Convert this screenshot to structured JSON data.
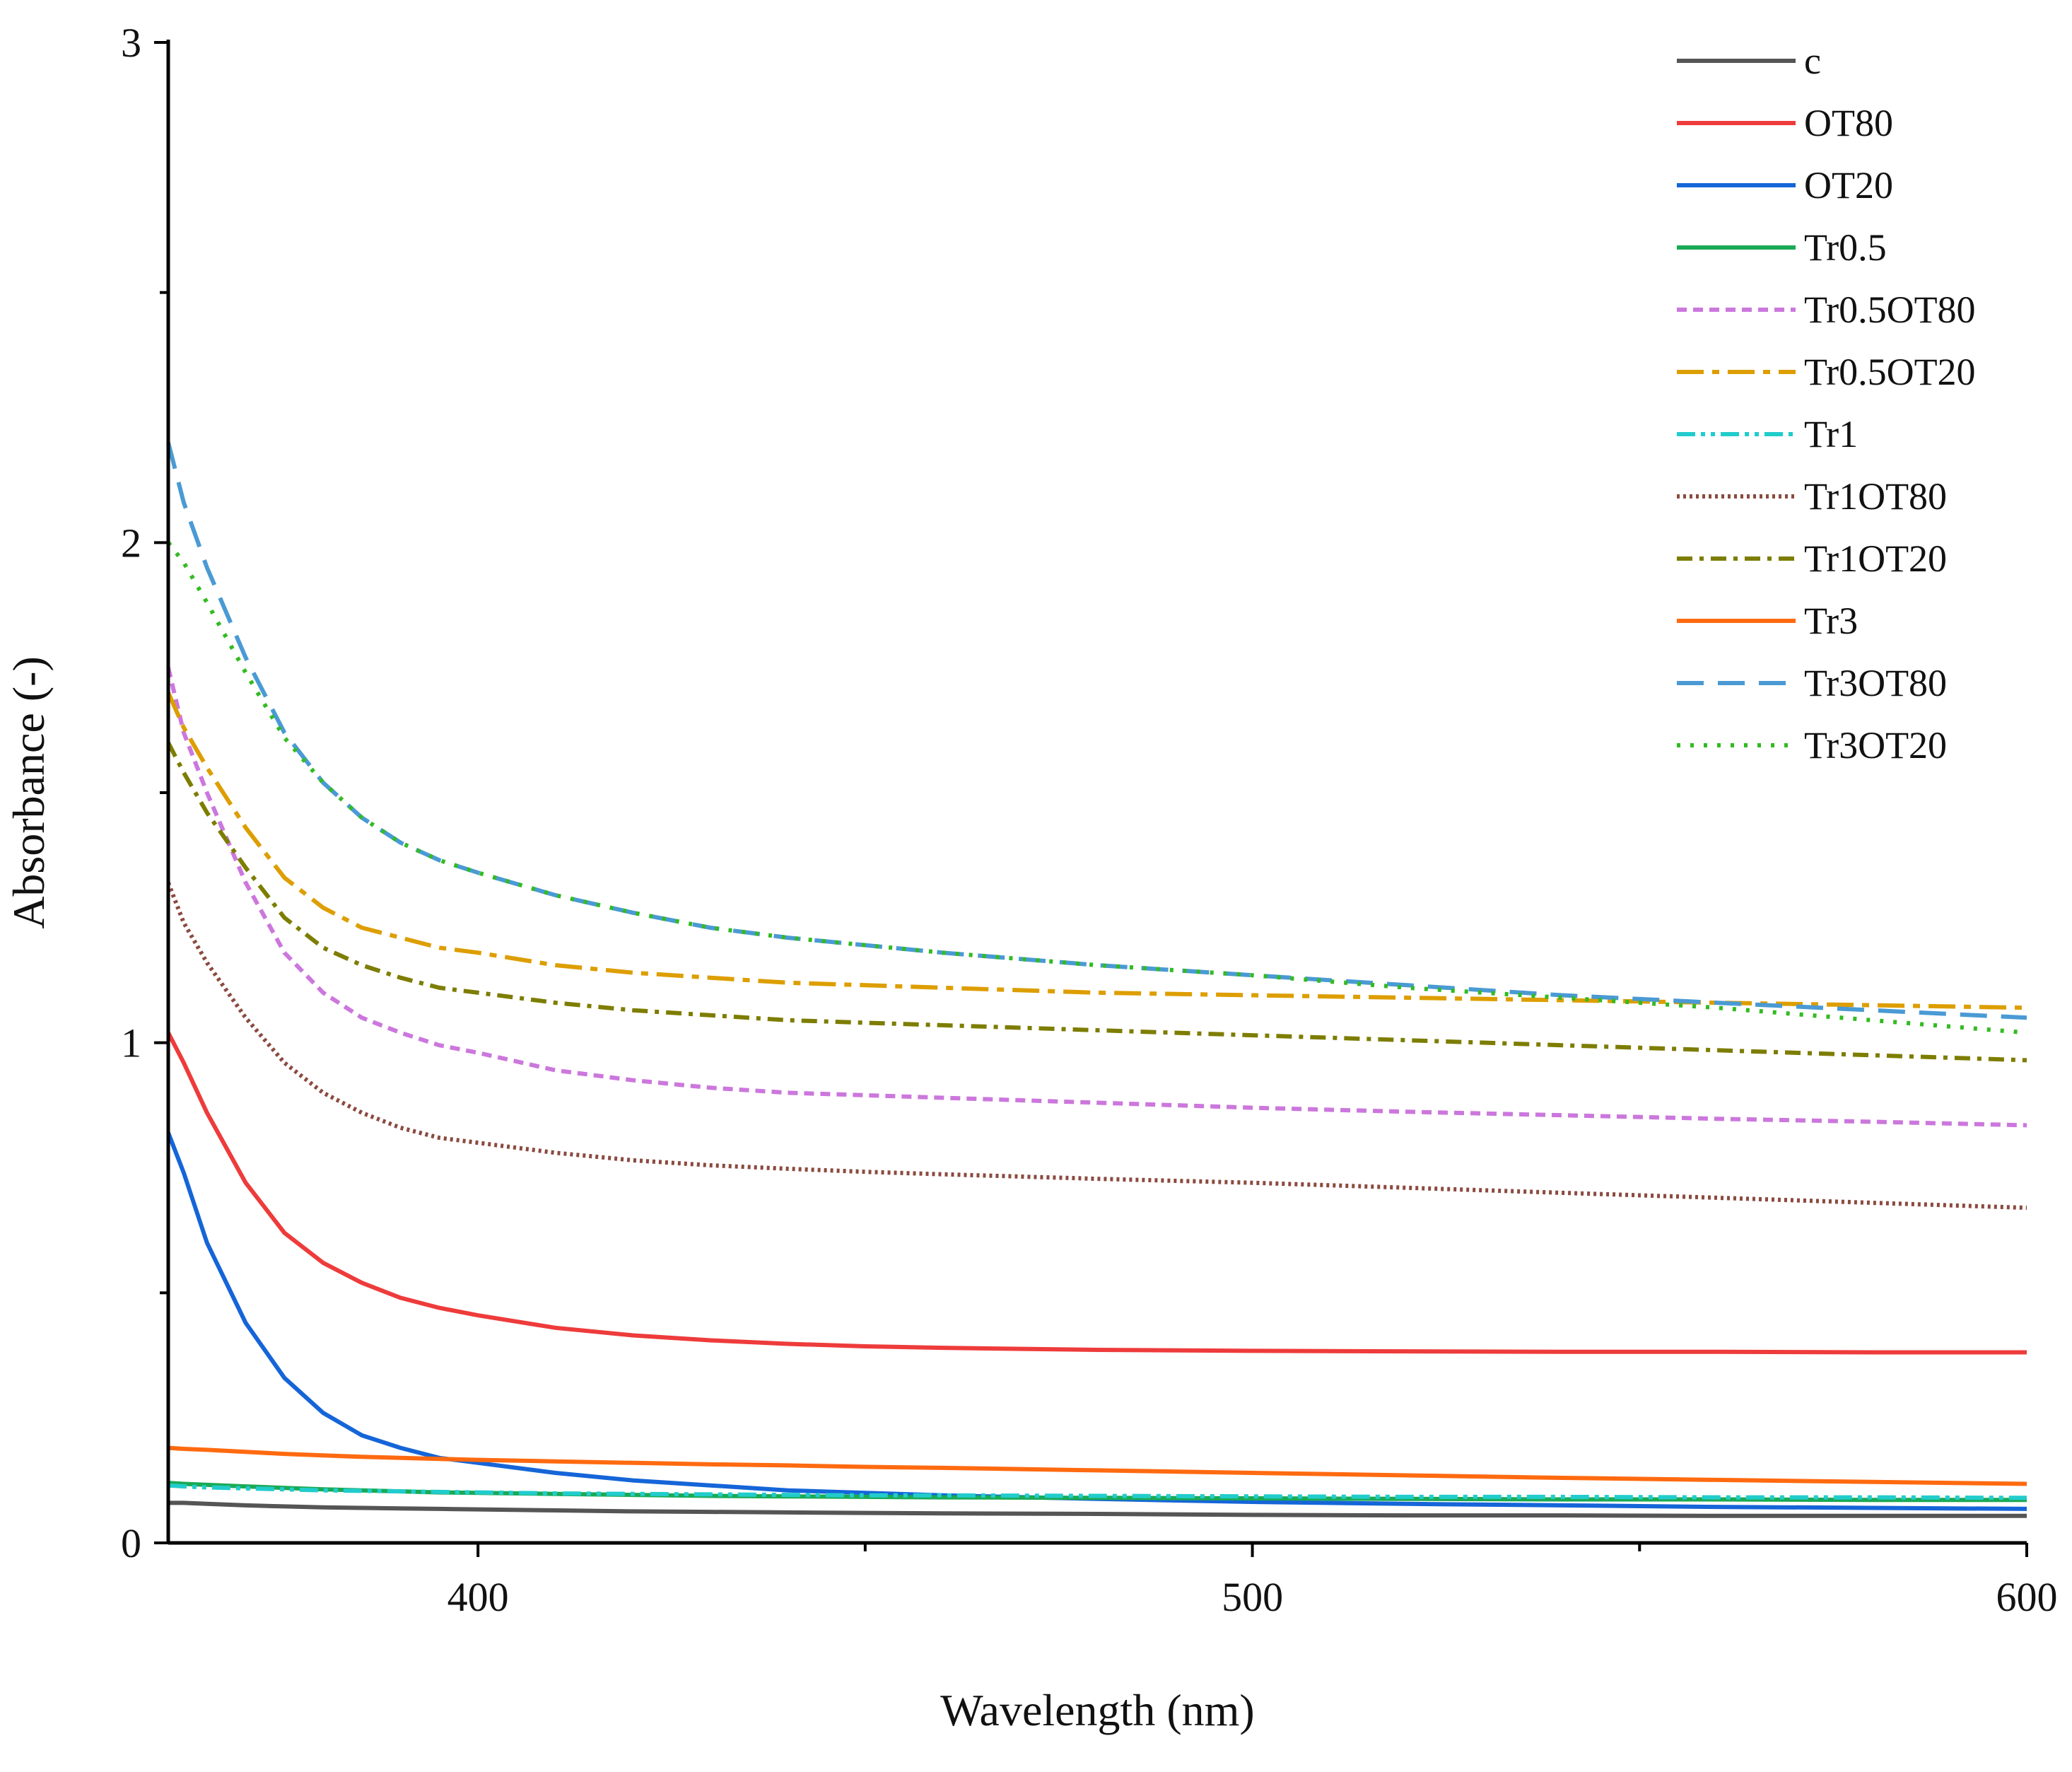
{
  "chart_data": {
    "type": "line",
    "title": "",
    "xlabel": "Wavelength (nm)",
    "ylabel": "Absorbance (-)",
    "xlim": [
      360,
      600
    ],
    "ylim": [
      0,
      3
    ],
    "x_ticks": [
      400,
      500,
      600
    ],
    "x_tick_labels": [
      "400",
      "500",
      "600"
    ],
    "x_minor_ticks": [
      450,
      550
    ],
    "y_ticks": [
      0,
      1,
      2,
      3
    ],
    "y_tick_labels": [
      "0",
      "1",
      "2",
      "3"
    ],
    "y_minor_ticks": [
      0.5,
      1.5,
      2.5
    ],
    "grid": false,
    "legend_position": "top-right",
    "x": [
      360,
      362,
      365,
      370,
      375,
      380,
      385,
      390,
      395,
      400,
      410,
      420,
      430,
      440,
      450,
      460,
      480,
      500,
      520,
      540,
      560,
      580,
      600
    ],
    "series": [
      {
        "name": "c",
        "color": "#555555",
        "dash": "solid",
        "values": [
          0.08,
          0.08,
          0.078,
          0.075,
          0.073,
          0.071,
          0.07,
          0.069,
          0.068,
          0.067,
          0.065,
          0.063,
          0.062,
          0.061,
          0.06,
          0.059,
          0.058,
          0.056,
          0.055,
          0.055,
          0.054,
          0.054,
          0.054
        ]
      },
      {
        "name": "OT80",
        "color": "#ee3b3b",
        "dash": "solid",
        "values": [
          1.02,
          0.96,
          0.86,
          0.72,
          0.62,
          0.56,
          0.52,
          0.49,
          0.47,
          0.455,
          0.43,
          0.415,
          0.405,
          0.398,
          0.393,
          0.39,
          0.386,
          0.384,
          0.383,
          0.382,
          0.382,
          0.381,
          0.381
        ]
      },
      {
        "name": "OT20",
        "color": "#1565d8",
        "dash": "solid",
        "values": [
          0.82,
          0.74,
          0.6,
          0.44,
          0.33,
          0.26,
          0.215,
          0.19,
          0.17,
          0.16,
          0.14,
          0.125,
          0.115,
          0.105,
          0.1,
          0.095,
          0.088,
          0.082,
          0.078,
          0.075,
          0.072,
          0.07,
          0.068
        ]
      },
      {
        "name": "Tr0.5",
        "color": "#1aaa55",
        "dash": "solid",
        "values": [
          0.12,
          0.118,
          0.116,
          0.113,
          0.11,
          0.107,
          0.105,
          0.103,
          0.101,
          0.1,
          0.098,
          0.096,
          0.094,
          0.093,
          0.092,
          0.091,
          0.09,
          0.089,
          0.088,
          0.087,
          0.087,
          0.086,
          0.086
        ]
      },
      {
        "name": "Tr0.5OT80",
        "color": "#cc77dd",
        "dash": "14 9",
        "values": [
          1.75,
          1.62,
          1.5,
          1.32,
          1.18,
          1.1,
          1.05,
          1.02,
          0.995,
          0.98,
          0.945,
          0.925,
          0.91,
          0.9,
          0.895,
          0.89,
          0.88,
          0.87,
          0.862,
          0.855,
          0.848,
          0.842,
          0.835
        ]
      },
      {
        "name": "Tr0.5OT20",
        "color": "#dd9e00",
        "dash": "38 12 10 12",
        "values": [
          1.7,
          1.63,
          1.55,
          1.43,
          1.33,
          1.27,
          1.23,
          1.21,
          1.19,
          1.18,
          1.155,
          1.14,
          1.13,
          1.12,
          1.115,
          1.11,
          1.1,
          1.095,
          1.09,
          1.085,
          1.08,
          1.075,
          1.07
        ]
      },
      {
        "name": "Tr1",
        "color": "#22cccc",
        "dash": "26 8 6 8 6 8",
        "values": [
          0.115,
          0.113,
          0.111,
          0.109,
          0.107,
          0.105,
          0.104,
          0.103,
          0.102,
          0.101,
          0.099,
          0.098,
          0.097,
          0.096,
          0.095,
          0.095,
          0.094,
          0.093,
          0.092,
          0.092,
          0.091,
          0.091,
          0.09
        ]
      },
      {
        "name": "Tr1OT80",
        "color": "#8b4a3f",
        "dash": "4 5",
        "values": [
          1.32,
          1.24,
          1.16,
          1.05,
          0.96,
          0.9,
          0.86,
          0.83,
          0.81,
          0.8,
          0.78,
          0.765,
          0.755,
          0.748,
          0.742,
          0.737,
          0.728,
          0.72,
          0.71,
          0.7,
          0.69,
          0.68,
          0.67
        ]
      },
      {
        "name": "Tr1OT20",
        "color": "#7d7d00",
        "dash": "22 10 6 10",
        "values": [
          1.6,
          1.54,
          1.46,
          1.35,
          1.25,
          1.19,
          1.155,
          1.13,
          1.11,
          1.1,
          1.08,
          1.065,
          1.055,
          1.045,
          1.04,
          1.035,
          1.025,
          1.015,
          1.005,
          0.995,
          0.985,
          0.975,
          0.965
        ]
      },
      {
        "name": "Tr3",
        "color": "#ff6a10",
        "dash": "solid",
        "values": [
          0.19,
          0.188,
          0.186,
          0.182,
          0.178,
          0.175,
          0.172,
          0.17,
          0.168,
          0.166,
          0.163,
          0.16,
          0.157,
          0.155,
          0.152,
          0.15,
          0.145,
          0.14,
          0.135,
          0.13,
          0.126,
          0.122,
          0.118
        ]
      },
      {
        "name": "Tr3OT80",
        "color": "#4a9ad4",
        "dash": "38 20",
        "values": [
          2.2,
          2.08,
          1.95,
          1.77,
          1.62,
          1.52,
          1.45,
          1.4,
          1.365,
          1.34,
          1.295,
          1.26,
          1.23,
          1.21,
          1.195,
          1.18,
          1.155,
          1.135,
          1.115,
          1.095,
          1.08,
          1.065,
          1.05
        ]
      },
      {
        "name": "Tr3OT20",
        "color": "#33bb22",
        "dash": "5 14",
        "values": [
          2.0,
          1.96,
          1.88,
          1.74,
          1.61,
          1.52,
          1.45,
          1.4,
          1.365,
          1.34,
          1.295,
          1.26,
          1.23,
          1.21,
          1.195,
          1.18,
          1.155,
          1.135,
          1.11,
          1.09,
          1.07,
          1.045,
          1.02
        ]
      }
    ]
  }
}
